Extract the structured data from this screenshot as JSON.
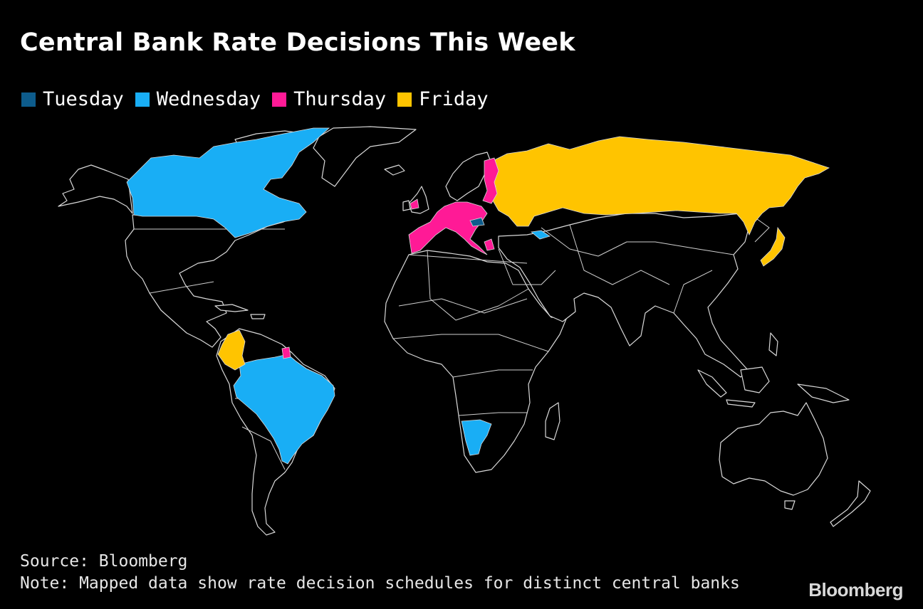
{
  "header": {
    "title": "Central Bank Rate Decisions This Week"
  },
  "legend": [
    {
      "label": "Tuesday",
      "color": "#0d5c8c"
    },
    {
      "label": "Wednesday",
      "color": "#19aef5"
    },
    {
      "label": "Thursday",
      "color": "#ff1a96"
    },
    {
      "label": "Friday",
      "color": "#ffc400"
    }
  ],
  "footer": {
    "source": "Source: Bloomberg",
    "note": "Note: Mapped data show rate decision schedules for distinct central banks"
  },
  "brand": {
    "logo": "Bloomberg"
  },
  "colors": {
    "background": "#000000",
    "border": "#d9d9d9",
    "tuesday": "#0d5c8c",
    "wednesday": "#19aef5",
    "thursday": "#ff1a96",
    "friday": "#ffc400"
  }
}
